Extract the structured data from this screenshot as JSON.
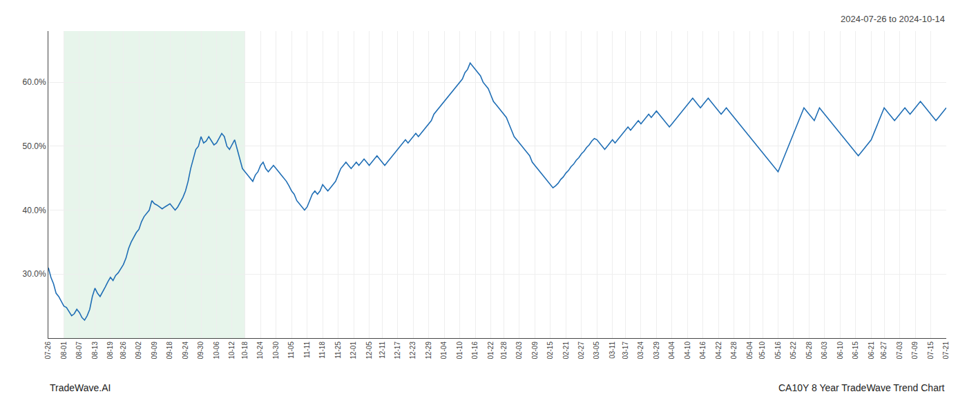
{
  "chart_data": {
    "type": "line",
    "title": "CA10Y 8 Year TradeWave Trend Chart",
    "subtitle": "2024-07-26 to 2024-10-14",
    "annotations": [
      "TradeWave.AI"
    ],
    "color": "#1f6eb5",
    "grid": true,
    "shade": {
      "from": "08-01",
      "to": "10-18",
      "color": "#d4edda"
    },
    "ylim": [
      20,
      68
    ],
    "yticks": [
      {
        "value": 30.0,
        "label": "30.0%"
      },
      {
        "value": 40.0,
        "label": "40.0%"
      },
      {
        "value": 50.0,
        "label": "50.0%"
      },
      {
        "value": 60.0,
        "label": "60.0%"
      }
    ],
    "categories": [
      "07-26",
      null,
      null,
      null,
      null,
      null,
      "08-01",
      null,
      null,
      null,
      null,
      null,
      "08-07",
      null,
      null,
      null,
      null,
      null,
      "08-13",
      null,
      null,
      null,
      null,
      null,
      "08-19",
      null,
      null,
      null,
      null,
      "08-26",
      null,
      null,
      null,
      null,
      null,
      "09-02",
      null,
      null,
      null,
      null,
      null,
      "09-09",
      null,
      null,
      null,
      null,
      null,
      "09-18",
      null,
      null,
      null,
      null,
      null,
      "09-24",
      null,
      null,
      null,
      null,
      null,
      "09-30",
      null,
      null,
      null,
      null,
      null,
      "10-06",
      null,
      null,
      null,
      null,
      null,
      "10-12",
      null,
      null,
      null,
      null,
      "10-18",
      null,
      null,
      null,
      null,
      null,
      "10-24",
      null,
      null,
      null,
      null,
      null,
      "10-30",
      null,
      null,
      null,
      null,
      null,
      "11-05",
      null,
      null,
      null,
      null,
      null,
      "11-11",
      null,
      null,
      null,
      null,
      null,
      "11-18",
      null,
      null,
      null,
      null,
      null,
      "11-25",
      null,
      null,
      null,
      null,
      null,
      "12-01",
      null,
      null,
      null,
      null,
      null,
      "12-05",
      null,
      null,
      null,
      null,
      "12-11",
      null,
      null,
      null,
      null,
      null,
      "12-17",
      null,
      null,
      null,
      null,
      null,
      "12-23",
      null,
      null,
      null,
      null,
      null,
      "12-29",
      null,
      null,
      null,
      null,
      null,
      "01-04",
      null,
      null,
      null,
      null,
      null,
      "01-10",
      null,
      null,
      null,
      null,
      null,
      "01-16",
      null,
      null,
      null,
      null,
      null,
      "01-22",
      null,
      null,
      null,
      null,
      "01-28",
      null,
      null,
      null,
      null,
      null,
      "02-03",
      null,
      null,
      null,
      null,
      null,
      "02-09",
      null,
      null,
      null,
      null,
      null,
      "02-15",
      null,
      null,
      null,
      null,
      null,
      "02-21",
      null,
      null,
      null,
      null,
      null,
      "02-27",
      null,
      null,
      null,
      null,
      null,
      "03-05",
      null,
      null,
      null,
      null,
      null,
      "03-11",
      null,
      null,
      null,
      null,
      "03-17",
      null,
      null,
      null,
      null,
      null,
      "03-24",
      null,
      null,
      null,
      null,
      null,
      "03-29",
      null,
      null,
      null,
      null,
      null,
      "04-04",
      null,
      null,
      null,
      null,
      null,
      "04-10",
      null,
      null,
      null,
      null,
      null,
      "04-16",
      null,
      null,
      null,
      null,
      null,
      "04-22",
      null,
      null,
      null,
      null,
      null,
      "04-28",
      null,
      null,
      null,
      null,
      null,
      "05-04",
      null,
      null,
      null,
      null,
      "05-10",
      null,
      null,
      null,
      null,
      null,
      "05-16",
      null,
      null,
      null,
      null,
      null,
      "05-22",
      null,
      null,
      null,
      null,
      null,
      "05-28",
      null,
      null,
      null,
      null,
      null,
      "06-03",
      null,
      null,
      null,
      null,
      null,
      "06-10",
      null,
      null,
      null,
      null,
      null,
      "06-15",
      null,
      null,
      null,
      null,
      null,
      "06-21",
      null,
      null,
      null,
      null,
      "06-27",
      null,
      null,
      null,
      null,
      null,
      "07-03",
      null,
      null,
      null,
      null,
      null,
      "07-09",
      null,
      null,
      null,
      null,
      null,
      "07-15",
      null,
      null,
      null,
      null,
      null,
      "07-21"
    ],
    "values": [
      31.0,
      29.5,
      28.5,
      27.0,
      26.5,
      25.8,
      25.0,
      24.8,
      24.2,
      23.5,
      23.8,
      24.5,
      24.0,
      23.2,
      22.8,
      23.5,
      24.5,
      26.5,
      27.8,
      27.0,
      26.5,
      27.2,
      28.0,
      28.8,
      29.5,
      29.0,
      29.8,
      30.2,
      30.8,
      31.5,
      32.5,
      34.0,
      35.0,
      35.8,
      36.5,
      37.0,
      38.2,
      39.0,
      39.5,
      40.0,
      41.5,
      41.0,
      40.8,
      40.5,
      40.2,
      40.5,
      40.8,
      41.0,
      40.5,
      40.0,
      40.5,
      41.2,
      42.0,
      43.0,
      44.5,
      46.5,
      48.0,
      49.5,
      50.0,
      51.5,
      50.5,
      50.8,
      51.5,
      50.8,
      50.2,
      50.5,
      51.2,
      52.0,
      51.5,
      50.0,
      49.5,
      50.2,
      51.0,
      49.5,
      48.0,
      46.5,
      46.0,
      45.5,
      45.0,
      44.5,
      45.5,
      46.0,
      47.0,
      47.5,
      46.5,
      46.0,
      46.5,
      47.0,
      46.5,
      46.0,
      45.5,
      45.0,
      44.5,
      43.8,
      43.0,
      42.5,
      41.5,
      41.0,
      40.5,
      40.0,
      40.5,
      41.5,
      42.5,
      43.0,
      42.5,
      43.0,
      44.0,
      43.5,
      43.0,
      43.5,
      44.0,
      44.5,
      45.5,
      46.5,
      47.0,
      47.5,
      47.0,
      46.5,
      47.0,
      47.5,
      47.0,
      47.5,
      48.0,
      47.5,
      47.0,
      47.5,
      48.0,
      48.5,
      48.0,
      47.5,
      47.0,
      47.5,
      48.0,
      48.5,
      49.0,
      49.5,
      50.0,
      50.5,
      51.0,
      50.5,
      51.0,
      51.5,
      52.0,
      51.5,
      52.0,
      52.5,
      53.0,
      53.5,
      54.0,
      55.0,
      55.5,
      56.0,
      56.5,
      57.0,
      57.5,
      58.0,
      58.5,
      59.0,
      59.5,
      60.0,
      60.5,
      61.5,
      62.0,
      63.0,
      62.5,
      62.0,
      61.5,
      61.0,
      60.0,
      59.5,
      59.0,
      58.0,
      57.0,
      56.5,
      56.0,
      55.5,
      55.0,
      54.5,
      53.5,
      52.5,
      51.5,
      51.0,
      50.5,
      50.0,
      49.5,
      49.0,
      48.5,
      47.5,
      47.0,
      46.5,
      46.0,
      45.5,
      45.0,
      44.5,
      44.0,
      43.5,
      43.8,
      44.2,
      44.8,
      45.2,
      45.8,
      46.2,
      46.8,
      47.2,
      47.8,
      48.2,
      48.8,
      49.2,
      49.8,
      50.2,
      50.8,
      51.2,
      51.0,
      50.5,
      50.0,
      49.5,
      50.0,
      50.5,
      51.0,
      50.5,
      51.0,
      51.5,
      52.0,
      52.5,
      53.0,
      52.5,
      53.0,
      53.5,
      54.0,
      53.5,
      54.0,
      54.5,
      55.0,
      54.5,
      55.0,
      55.5,
      55.0,
      54.5,
      54.0,
      53.5,
      53.0,
      53.5,
      54.0,
      54.5,
      55.0,
      55.5,
      56.0,
      56.5,
      57.0,
      57.5,
      57.0,
      56.5,
      56.0,
      56.5,
      57.0,
      57.5,
      57.0,
      56.5,
      56.0,
      55.5,
      55.0,
      55.5,
      56.0,
      55.5,
      55.0,
      54.5,
      54.0,
      53.5,
      53.0,
      52.5,
      52.0,
      51.5,
      51.0,
      50.5,
      50.0,
      49.5,
      49.0,
      48.5,
      48.0,
      47.5,
      47.0,
      46.5,
      46.0,
      47.0,
      48.0,
      49.0,
      50.0,
      51.0,
      52.0,
      53.0,
      54.0,
      55.0,
      56.0,
      55.5,
      55.0,
      54.5,
      54.0,
      55.0,
      56.0,
      55.5,
      55.0,
      54.5,
      54.0,
      53.5,
      53.0,
      52.5,
      52.0,
      51.5,
      51.0,
      50.5,
      50.0,
      49.5,
      49.0,
      48.5,
      49.0,
      49.5,
      50.0,
      50.5,
      51.0,
      52.0,
      53.0,
      54.0,
      55.0,
      56.0,
      55.5,
      55.0,
      54.5,
      54.0,
      54.5,
      55.0,
      55.5,
      56.0,
      55.5,
      55.0,
      55.5,
      56.0,
      56.5,
      57.0,
      56.5,
      56.0,
      55.5,
      55.0,
      54.5,
      54.0,
      54.5,
      55.0,
      55.5,
      56.0
    ]
  }
}
